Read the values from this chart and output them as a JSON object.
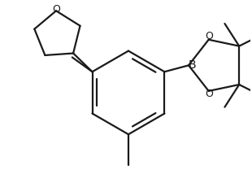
{
  "background_color": "#ffffff",
  "line_color": "#1a1a1a",
  "line_width": 1.6,
  "figsize": [
    3.1,
    2.14
  ],
  "dpi": 100,
  "xlim": [
    0,
    310
  ],
  "ylim": [
    0,
    214
  ]
}
